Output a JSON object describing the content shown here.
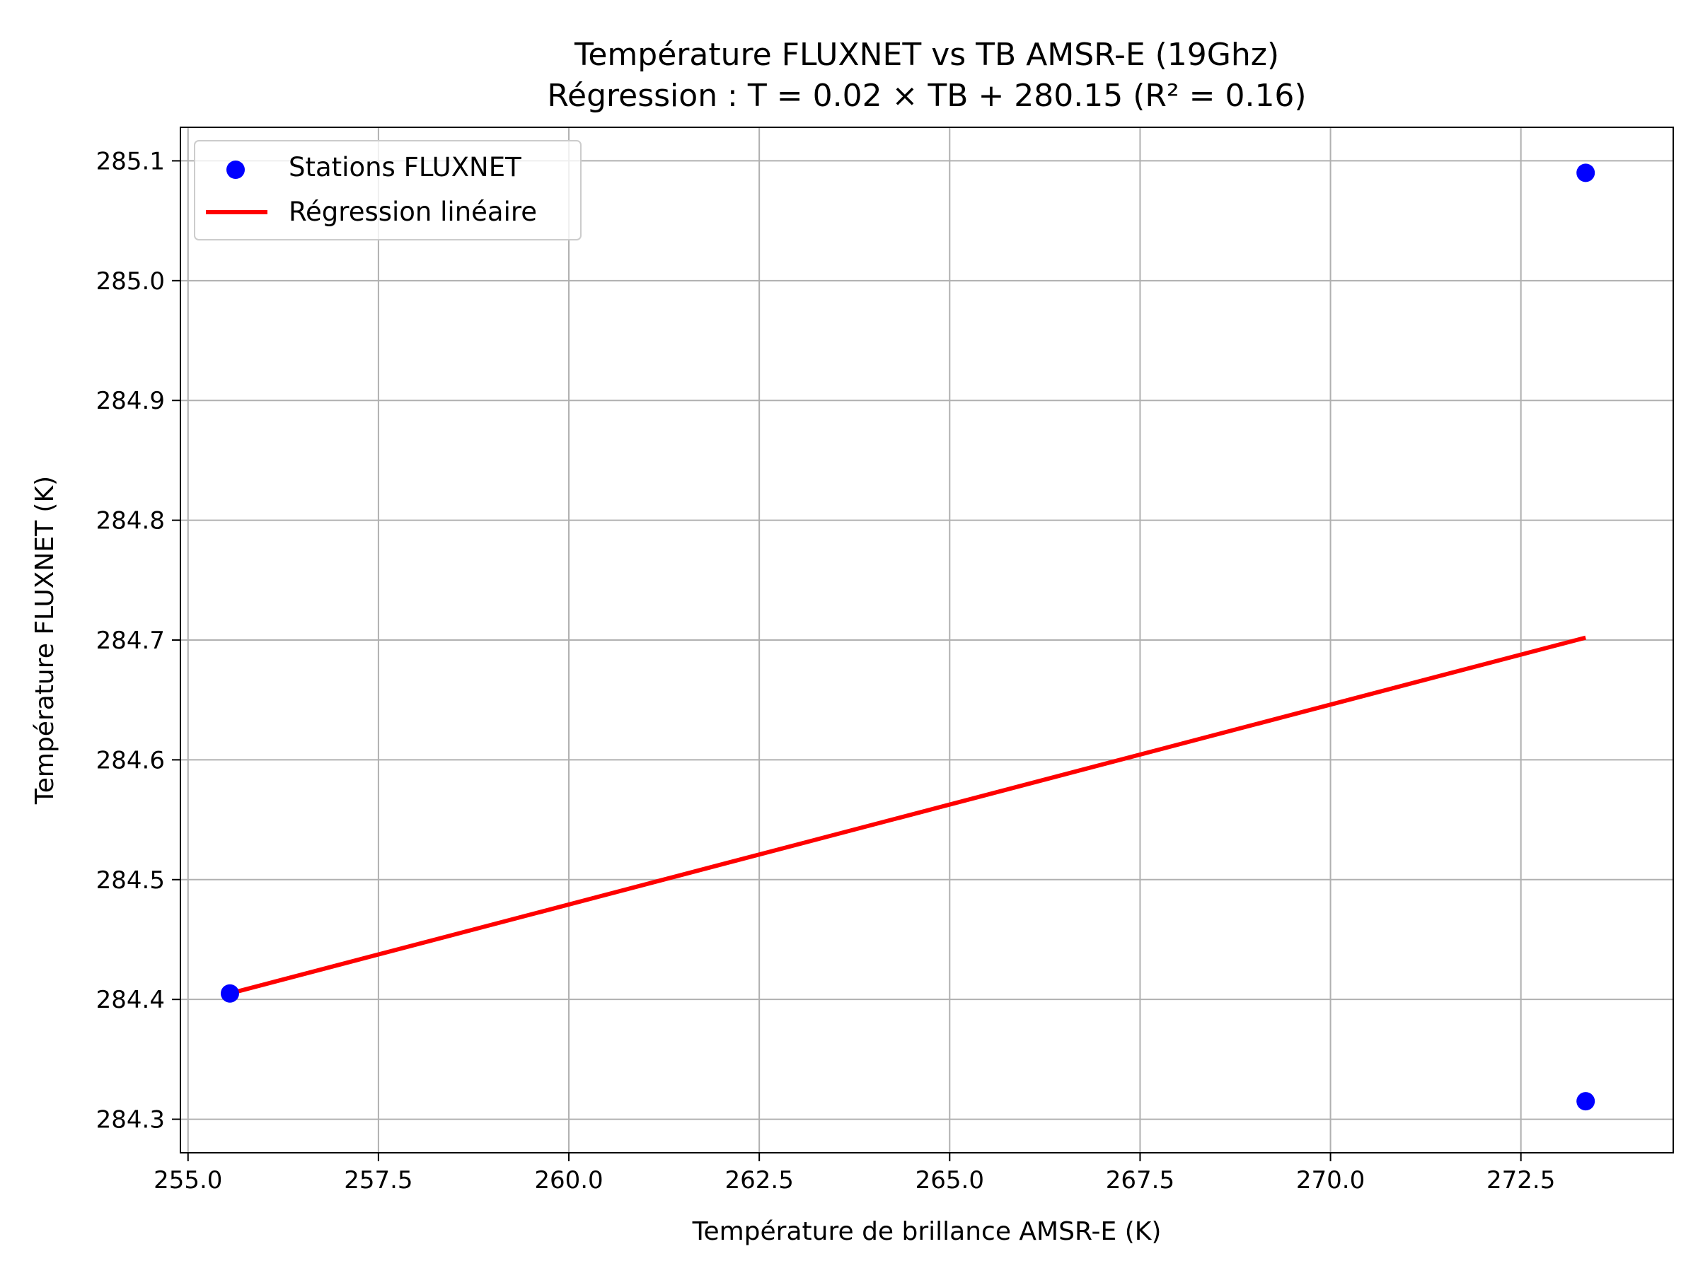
{
  "chart_data": {
    "type": "scatter",
    "title": "Température FLUXNET vs TB AMSR-E (19Ghz)",
    "subtitle": "Régression : T = 0.02 × TB + 280.15 (R² = 0.16)",
    "xlabel": "Température de brillance AMSR-E (K)",
    "ylabel": "Température FLUXNET (K)",
    "xlim": [
      254.9,
      274.5
    ],
    "ylim": [
      284.272,
      285.128
    ],
    "xticks": [
      255.0,
      257.5,
      260.0,
      262.5,
      265.0,
      267.5,
      270.0,
      272.5
    ],
    "xtick_labels": [
      "255.0",
      "257.5",
      "260.0",
      "262.5",
      "265.0",
      "267.5",
      "270.0",
      "272.5"
    ],
    "yticks": [
      284.3,
      284.4,
      284.5,
      284.6,
      284.7,
      284.8,
      284.9,
      285.0,
      285.1
    ],
    "ytick_labels": [
      "284.3",
      "284.4",
      "284.5",
      "284.6",
      "284.7",
      "284.8",
      "284.9",
      "285.0",
      "285.1"
    ],
    "grid": true,
    "legend_position": "top-left",
    "series": [
      {
        "name": "Stations FLUXNET",
        "kind": "scatter",
        "color": "#0000ff",
        "x": [
          255.55,
          273.35,
          273.35
        ],
        "y": [
          284.405,
          285.09,
          284.315
        ]
      },
      {
        "name": "Régression linéaire",
        "kind": "line",
        "color": "#ff0000",
        "x": [
          255.55,
          273.35
        ],
        "y": [
          284.405,
          284.702
        ]
      }
    ]
  }
}
